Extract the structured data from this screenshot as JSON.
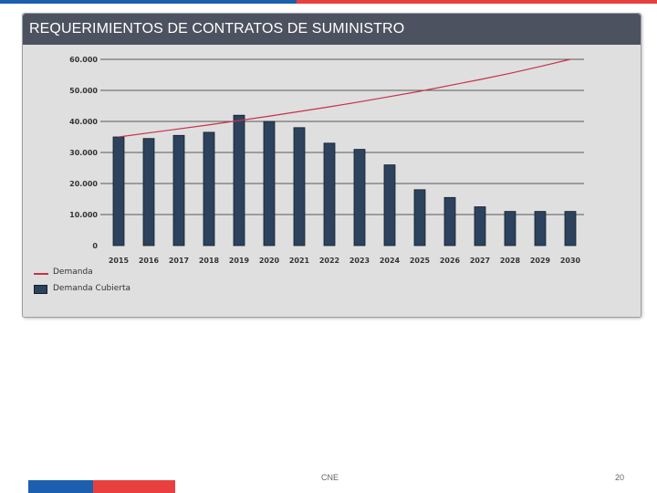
{
  "colors": {
    "brand_blue": "#1c5fae",
    "brand_red": "#e8403f",
    "title_bg": "#4d5260",
    "panel_bg": "#dfdfdf",
    "bar": "#2c425d",
    "bar_edge": "#151e2b",
    "line": "#c5324b"
  },
  "header": {
    "title": "REQUERIMIENTOS DE CONTRATOS DE SUMINISTRO"
  },
  "footer": {
    "source": "CNE",
    "page_number": "20"
  },
  "chart_data": {
    "type": "bar",
    "categories": [
      "2015",
      "2016",
      "2017",
      "2018",
      "2019",
      "2020",
      "2021",
      "2022",
      "2023",
      "2024",
      "2025",
      "2026",
      "2027",
      "2028",
      "2029",
      "2030"
    ],
    "series": [
      {
        "name": "Demanda Cubierta",
        "type": "bar",
        "values": [
          35000,
          34500,
          35500,
          36500,
          42000,
          40000,
          38000,
          33000,
          31000,
          26000,
          18000,
          15500,
          12500,
          11000,
          11000,
          11000
        ]
      },
      {
        "name": "Demanda",
        "type": "line",
        "values": [
          35000,
          36300,
          37600,
          38900,
          40300,
          41700,
          43200,
          44700,
          46300,
          48000,
          49700,
          51600,
          53500,
          55500,
          57700,
          60000
        ]
      }
    ],
    "y_ticks": [
      "60.000",
      "50.000",
      "40.000",
      "30.000",
      "20.000",
      "10.000",
      "0"
    ],
    "ylim": [
      0,
      60000
    ],
    "grid": true,
    "legend_position": "bottom-left"
  }
}
